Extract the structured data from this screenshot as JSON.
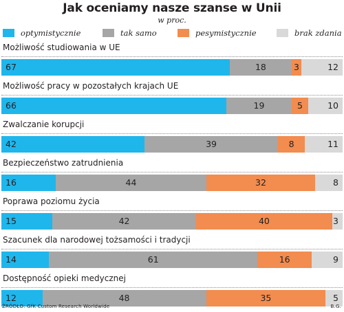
{
  "title": "Jak oceniamy nasze szanse w Unii",
  "subtitle": "w proc.",
  "source": "ŹRÓDŁO: GfK Custom Research Worldwide",
  "author": "B.G.",
  "colors": {
    "optymistycznie": "#1fb6ec",
    "tak_samo": "#a6a6a6",
    "pesymistycznie": "#f28c4f",
    "brak_zdania": "#d9d9d9"
  },
  "chart_data": {
    "type": "bar",
    "orientation": "horizontal",
    "stacked": true,
    "title": "Jak oceniamy nasze szanse w Unii",
    "subtitle": "w proc.",
    "categories": [
      "Możliwość studiowania w UE",
      "Możliwość pracy w pozostałych krajach UE",
      "Zwalczanie korupcji",
      "Bezpieczeństwo zatrudnienia",
      "Poprawa poziomu życia",
      "Szacunek dla narodowej tożsamości i tradycji",
      "Dostępność opieki medycznej"
    ],
    "series": [
      {
        "name": "optymistycznie",
        "values": [
          67,
          66,
          42,
          16,
          15,
          14,
          12
        ]
      },
      {
        "name": "tak samo",
        "values": [
          18,
          19,
          39,
          44,
          42,
          61,
          48
        ]
      },
      {
        "name": "pesymistycznie",
        "values": [
          3,
          5,
          8,
          32,
          40,
          16,
          35
        ]
      },
      {
        "name": "brak zdania",
        "values": [
          12,
          10,
          11,
          8,
          3,
          9,
          5
        ]
      }
    ],
    "legend": "top"
  }
}
